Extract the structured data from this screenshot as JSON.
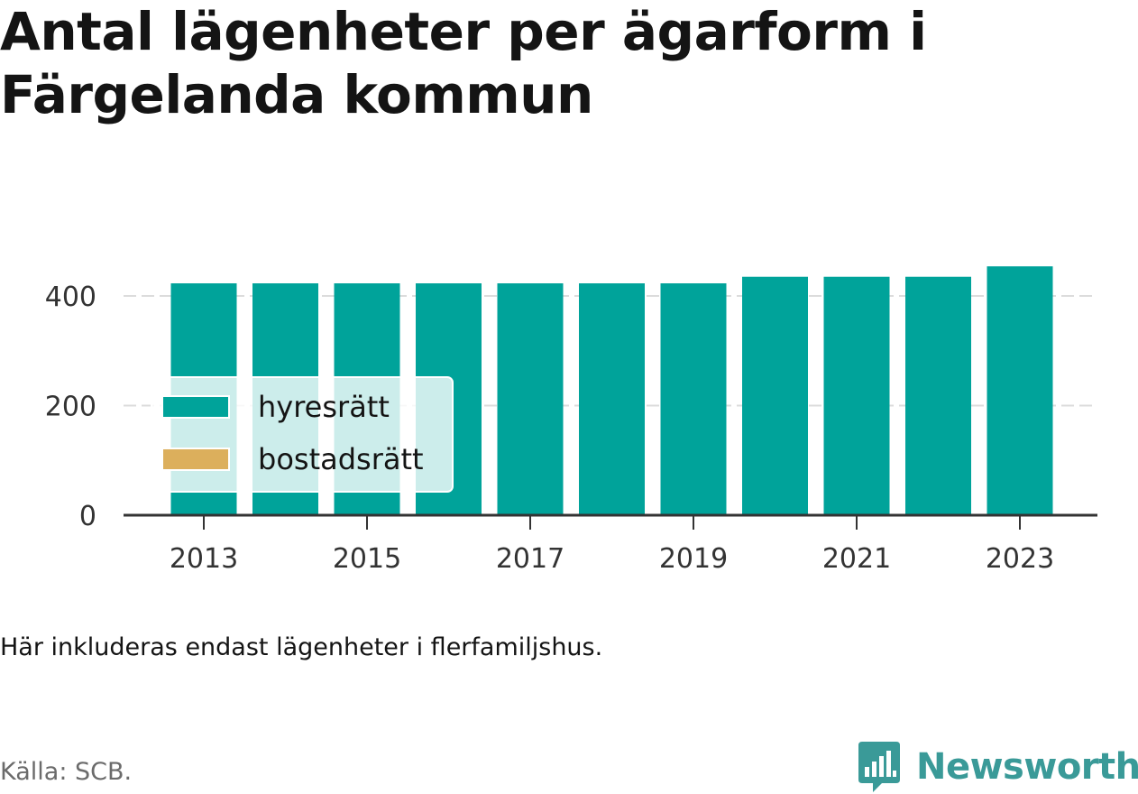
{
  "title": "Antal lägenheter per ägarform i Färgelanda kommun",
  "note": "Här inkluderas endast lägenheter i flerfamiljshus.",
  "source": "Källa: SCB.",
  "brand": "Newsworthy",
  "colors": {
    "hyresratt": "#00a39a",
    "bostadsratt": "#dcaf5c",
    "brand": "#3a9a98"
  },
  "chart_data": {
    "type": "bar",
    "stacked": true,
    "x": [
      2013,
      2014,
      2015,
      2016,
      2017,
      2018,
      2019,
      2020,
      2021,
      2022,
      2023
    ],
    "series": [
      {
        "name": "hyresrätt",
        "color": "#00a39a",
        "values": [
          423,
          423,
          423,
          423,
          423,
          423,
          423,
          435,
          435,
          435,
          454
        ]
      },
      {
        "name": "bostadsrätt",
        "color": "#dcaf5c",
        "values": [
          0,
          0,
          0,
          0,
          0,
          0,
          0,
          0,
          0,
          0,
          0
        ]
      }
    ],
    "x_ticks": [
      "2013",
      "2015",
      "2017",
      "2019",
      "2021",
      "2023"
    ],
    "y_ticks": [
      0,
      200,
      400
    ],
    "ylim": [
      0,
      480
    ],
    "grid": true,
    "legend": "inside-bottom-left"
  }
}
